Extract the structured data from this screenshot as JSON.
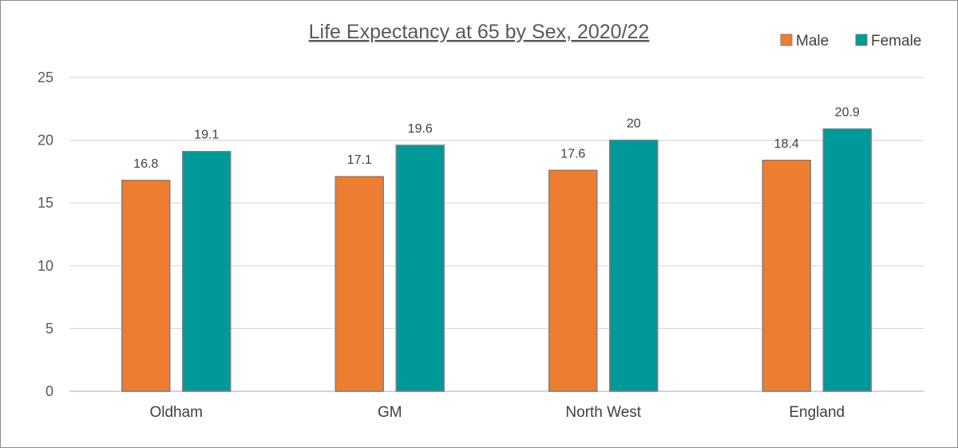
{
  "chart_data": {
    "type": "bar",
    "title": "Life Expectancy at 65 by Sex, 2020/22",
    "categories": [
      "Oldham",
      "GM",
      "North West",
      "England"
    ],
    "series": [
      {
        "name": "Male",
        "values": [
          16.8,
          17.1,
          17.6,
          18.4
        ],
        "color": "#ED7D31",
        "labels": [
          "16.8",
          "17.1",
          "17.6",
          "18.4"
        ]
      },
      {
        "name": "Female",
        "values": [
          19.1,
          19.6,
          20,
          20.9
        ],
        "color": "#009999",
        "labels": [
          "19.1",
          "19.6",
          "20",
          "20.9"
        ]
      }
    ],
    "ylim": [
      0,
      25
    ],
    "yticks": [
      0,
      5,
      10,
      15,
      20,
      25
    ],
    "ytick_labels": [
      "0",
      "5",
      "10",
      "15",
      "20",
      "25"
    ],
    "xlabel": "",
    "ylabel": "",
    "grid": true,
    "legend_position": "top-right",
    "bar_outline_color": "#7f7f7f",
    "gridline_color": "#d9d9d9"
  }
}
